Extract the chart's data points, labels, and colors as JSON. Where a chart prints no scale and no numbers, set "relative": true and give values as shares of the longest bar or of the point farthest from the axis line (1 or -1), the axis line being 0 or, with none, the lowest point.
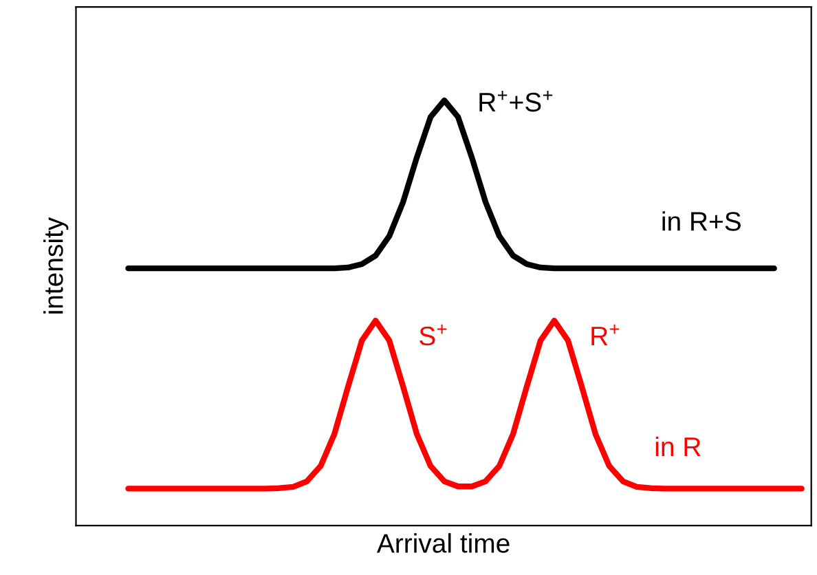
{
  "chart_data": {
    "type": "line",
    "relative": true,
    "xlabel": "Arrival time",
    "ylabel": "intensity",
    "categories": [
      null,
      null,
      null,
      null,
      null,
      null,
      null,
      null,
      null,
      null,
      null,
      null,
      null,
      null,
      null,
      null,
      null,
      null,
      null,
      null,
      null,
      null,
      null,
      null,
      null,
      null,
      null,
      null,
      null,
      null,
      null,
      null,
      null,
      null,
      null,
      null,
      null,
      null,
      null,
      null,
      null,
      null,
      null,
      null,
      null,
      null,
      null,
      null,
      null,
      null,
      null
    ],
    "series": [
      {
        "color": "#000000",
        "values": [
          null,
          0.605,
          0.605,
          0.605,
          0.605,
          0.605,
          0.605,
          0.605,
          0.605,
          0.605,
          0.605,
          0.605,
          0.605,
          0.605,
          0.605,
          0.605,
          0.605,
          0.607,
          0.615,
          0.635,
          0.681,
          0.761,
          0.866,
          0.961,
          1.0,
          0.961,
          0.866,
          0.761,
          0.681,
          0.635,
          0.615,
          0.607,
          0.605,
          0.605,
          0.605,
          0.605,
          0.605,
          0.605,
          0.605,
          0.605,
          0.605,
          0.605,
          0.605,
          0.605,
          0.605,
          0.605,
          0.605,
          0.605,
          0.605,
          null,
          null
        ]
      },
      {
        "color": "#ff0000",
        "values": [
          null,
          0.087,
          0.087,
          0.087,
          0.087,
          0.087,
          0.087,
          0.087,
          0.087,
          0.087,
          0.087,
          0.087,
          0.088,
          0.091,
          0.104,
          0.14,
          0.215,
          0.327,
          0.435,
          0.482,
          0.435,
          0.327,
          0.215,
          0.14,
          0.104,
          0.092,
          0.092,
          0.104,
          0.14,
          0.215,
          0.327,
          0.435,
          0.482,
          0.435,
          0.327,
          0.215,
          0.14,
          0.104,
          0.091,
          0.088,
          0.087,
          0.087,
          0.087,
          0.087,
          0.087,
          0.087,
          0.087,
          0.087,
          0.087,
          0.087,
          0.087
        ]
      }
    ],
    "annotations": [
      "R$^{+}$+S$^{+}$",
      "in R+S",
      "S$^{+}$",
      "R$^{+}$",
      "in R"
    ],
    "legend": false,
    "marker": "none",
    "line_style": "solid"
  }
}
